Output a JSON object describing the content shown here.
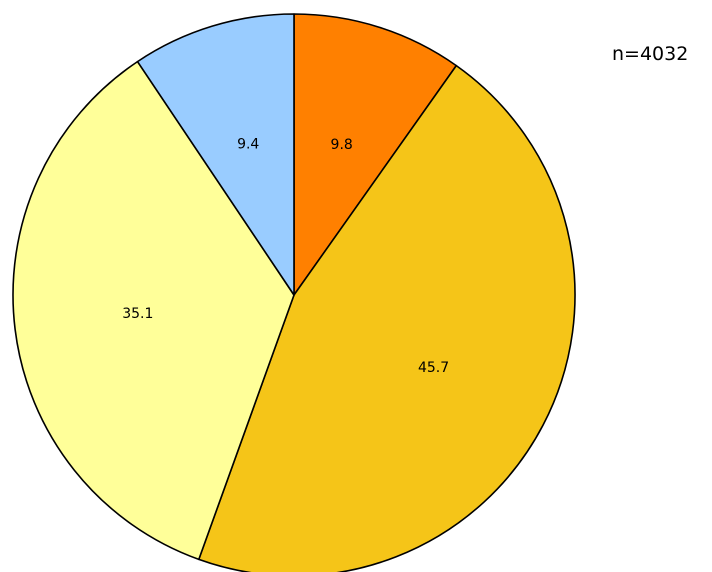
{
  "chart_data": {
    "type": "pie",
    "values": [
      9.8,
      45.7,
      35.1,
      9.4
    ],
    "slice_labels": [
      "9.8",
      "45.7",
      "35.1",
      "9.4"
    ],
    "colors": [
      "#FF8000",
      "#F5C518",
      "#FFFF99",
      "#99CCFF"
    ],
    "start": "12 o'clock",
    "direction": "clockwise",
    "legend": "none",
    "annotation": "n=4032"
  }
}
